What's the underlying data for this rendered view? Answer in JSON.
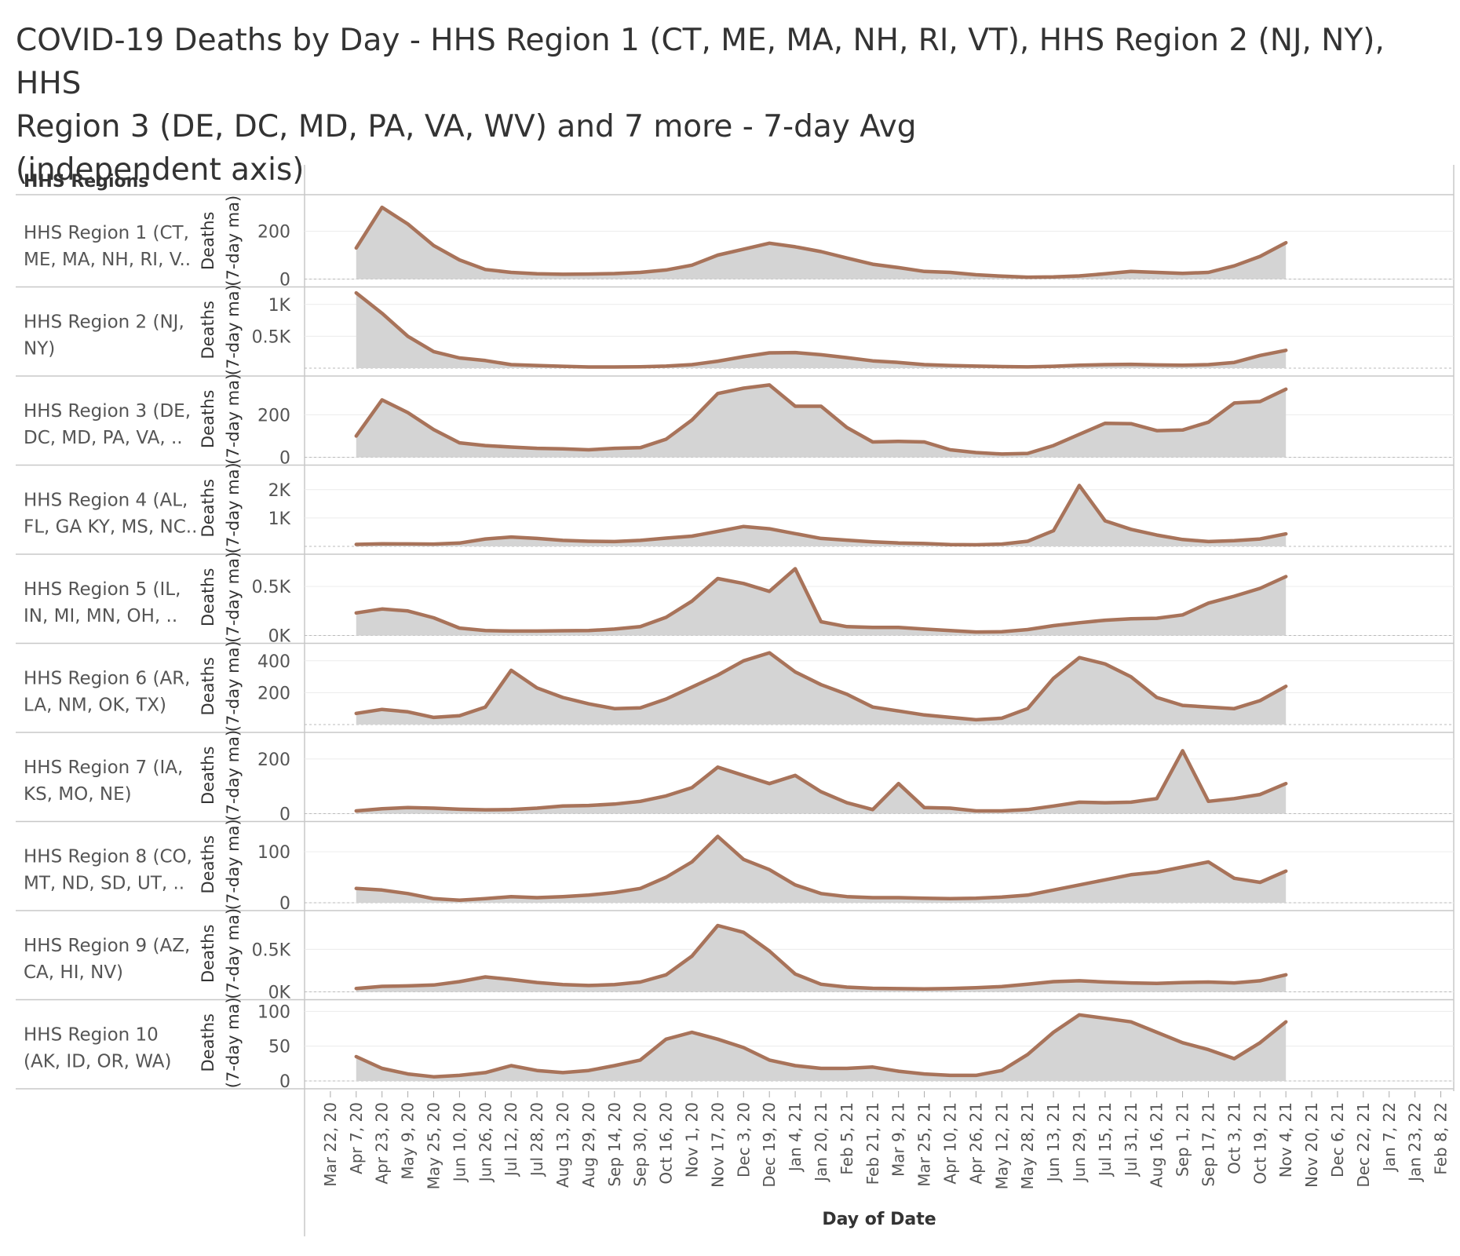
{
  "title_lines": [
    "COVID-19 Deaths by Day - HHS Region 1 (CT, ME, MA, NH, RI, VT), HHS Region 2 (NJ, NY), HHS",
    "Region 3 (DE, DC, MD, PA, VA, WV) and 7 more - 7-day Avg",
    "(independent axis)"
  ],
  "colors": {
    "line": "#a8735a",
    "area": "#d4d4d4",
    "grid": "#ececec",
    "border": "#c8c8c8",
    "text": "#555555"
  },
  "chart_data": {
    "type": "area",
    "row_header": "HHS Regions",
    "xlabel": "Day of Date",
    "ylabel_lines": [
      "Deaths",
      "(7-day ma)"
    ],
    "x_range_days": [
      0,
      323
    ],
    "x_ticks": [
      {
        "label": "Mar 22, 20",
        "day": 0
      },
      {
        "label": "Apr 7, 20",
        "day": 16
      },
      {
        "label": "Apr 23, 20",
        "day": 32
      },
      {
        "label": "May 9, 20",
        "day": 48
      },
      {
        "label": "May 25, 20",
        "day": 64
      },
      {
        "label": "Jun 10, 20",
        "day": 80
      },
      {
        "label": "Jun 26, 20",
        "day": 96
      },
      {
        "label": "Jul 12, 20",
        "day": 112
      },
      {
        "label": "Jul 28, 20",
        "day": 128
      },
      {
        "label": "Aug 13, 20",
        "day": 144
      },
      {
        "label": "Aug 29, 20",
        "day": 160
      },
      {
        "label": "Sep 14, 20",
        "day": 176
      },
      {
        "label": "Sep 30, 20",
        "day": 192
      },
      {
        "label": "Oct 16, 20",
        "day": 208
      },
      {
        "label": "Nov 1, 20",
        "day": 224
      },
      {
        "label": "Nov 17, 20",
        "day": 240
      },
      {
        "label": "Dec 3, 20",
        "day": 256
      },
      {
        "label": "Dec 19, 20",
        "day": 272
      },
      {
        "label": "Jan 4, 21",
        "day": 288
      },
      {
        "label": "Jan 20, 21",
        "day": 304
      },
      {
        "label": "Feb 5, 21",
        "day": 320
      },
      {
        "label": "Feb 21, 21",
        "day": 336
      },
      {
        "label": "Mar 9, 21",
        "day": 352
      },
      {
        "label": "Mar 25, 21",
        "day": 368
      },
      {
        "label": "Apr 10, 21",
        "day": 384
      },
      {
        "label": "Apr 26, 21",
        "day": 400
      },
      {
        "label": "May 12, 21",
        "day": 416
      },
      {
        "label": "May 28, 21",
        "day": 432
      },
      {
        "label": "Jun 13, 21",
        "day": 448
      },
      {
        "label": "Jun 29, 21",
        "day": 464
      },
      {
        "label": "Jul 15, 21",
        "day": 480
      },
      {
        "label": "Jul 31, 21",
        "day": 496
      },
      {
        "label": "Aug 16, 21",
        "day": 512
      },
      {
        "label": "Sep 1, 21",
        "day": 528
      },
      {
        "label": "Sep 17, 21",
        "day": 544
      },
      {
        "label": "Oct 3, 21",
        "day": 560
      },
      {
        "label": "Oct 19, 21",
        "day": 576
      },
      {
        "label": "Nov 4, 21",
        "day": 592
      },
      {
        "label": "Nov 20, 21",
        "day": 608
      },
      {
        "label": "Dec 6, 21",
        "day": 624
      },
      {
        "label": "Dec 22, 21",
        "day": 640
      },
      {
        "label": "Jan 7, 22",
        "day": 656
      },
      {
        "label": "Jan 23, 22",
        "day": 672
      },
      {
        "label": "Feb 8, 22",
        "day": 688
      }
    ],
    "x_domain": [
      -16,
      696
    ],
    "series_start_day": 16,
    "series_step_days": 16,
    "panels": [
      {
        "label_lines": [
          "HHS Region 1 (CT,",
          "ME, MA, NH, RI, V.."
        ],
        "ylim": [
          0,
          320
        ],
        "yticks": [
          {
            "label": "200",
            "v": 200
          },
          {
            "label": "0",
            "v": 0
          }
        ],
        "values": [
          130,
          300,
          230,
          140,
          80,
          40,
          28,
          22,
          20,
          21,
          23,
          28,
          38,
          58,
          100,
          125,
          150,
          135,
          115,
          88,
          62,
          48,
          32,
          28,
          18,
          12,
          8,
          9,
          13,
          22,
          32,
          28,
          24,
          28,
          55,
          95,
          152
        ]
      },
      {
        "label_lines": [
          "HHS Region 2 (NJ,",
          "NY)"
        ],
        "ylim": [
          0,
          1200
        ],
        "yticks": [
          {
            "label": "1K",
            "v": 1000
          },
          {
            "label": "0.5K",
            "v": 500
          }
        ],
        "values": [
          1180,
          860,
          500,
          260,
          160,
          120,
          55,
          42,
          30,
          18,
          18,
          22,
          32,
          55,
          110,
          180,
          240,
          245,
          210,
          165,
          115,
          90,
          55,
          42,
          32,
          25,
          20,
          30,
          45,
          55,
          60,
          50,
          45,
          55,
          90,
          200,
          280
        ]
      },
      {
        "label_lines": [
          "HHS Region 3 (DE,",
          "DC, MD, PA, VA, .."
        ],
        "ylim": [
          0,
          360
        ],
        "yticks": [
          {
            "label": "200",
            "v": 200
          },
          {
            "label": "0",
            "v": 0
          }
        ],
        "values": [
          100,
          270,
          210,
          130,
          68,
          55,
          48,
          42,
          40,
          35,
          42,
          45,
          85,
          175,
          300,
          325,
          340,
          240,
          240,
          140,
          72,
          75,
          72,
          35,
          22,
          15,
          18,
          55,
          108,
          160,
          158,
          125,
          128,
          165,
          255,
          262,
          320
        ]
      },
      {
        "label_lines": [
          "HHS Region 4 (AL,",
          "FL, GA KY, MS, NC.."
        ],
        "ylim": [
          0,
          2700
        ],
        "yticks": [
          {
            "label": "2K",
            "v": 2000
          },
          {
            "label": "1K",
            "v": 1000
          }
        ],
        "values": [
          70,
          90,
          85,
          80,
          115,
          260,
          330,
          280,
          210,
          180,
          170,
          210,
          290,
          360,
          530,
          700,
          620,
          450,
          280,
          220,
          160,
          120,
          100,
          60,
          55,
          80,
          180,
          550,
          2150,
          900,
          600,
          400,
          240,
          170,
          200,
          260,
          440
        ]
      },
      {
        "label_lines": [
          "HHS Region 5 (IL,",
          "IN, MI, MN, OH, .."
        ],
        "ylim": [
          0,
          780
        ],
        "yticks": [
          {
            "label": "0.5K",
            "v": 500
          },
          {
            "label": "0K",
            "v": 0
          }
        ],
        "values": [
          230,
          270,
          250,
          180,
          75,
          50,
          45,
          45,
          48,
          50,
          65,
          90,
          185,
          350,
          580,
          530,
          450,
          680,
          140,
          90,
          82,
          82,
          65,
          50,
          35,
          38,
          60,
          100,
          130,
          155,
          170,
          175,
          210,
          330,
          400,
          480,
          600
        ]
      },
      {
        "label_lines": [
          "HHS Region 6 (AR,",
          "LA, NM, OK, TX)"
        ],
        "ylim": [
          0,
          480
        ],
        "yticks": [
          {
            "label": "400",
            "v": 400
          },
          {
            "label": "200",
            "v": 200
          }
        ],
        "values": [
          70,
          95,
          80,
          45,
          55,
          110,
          340,
          230,
          170,
          130,
          100,
          105,
          160,
          235,
          310,
          400,
          450,
          330,
          250,
          190,
          110,
          85,
          60,
          45,
          30,
          40,
          100,
          290,
          420,
          380,
          300,
          170,
          120,
          110,
          100,
          150,
          240
        ]
      },
      {
        "label_lines": [
          "HHS Region 7 (IA,",
          "KS, MO, NE)"
        ],
        "ylim": [
          0,
          280
        ],
        "yticks": [
          {
            "label": "200",
            "v": 200
          },
          {
            "label": "0",
            "v": 0
          }
        ],
        "values": [
          10,
          18,
          22,
          20,
          16,
          14,
          15,
          20,
          28,
          30,
          35,
          45,
          65,
          95,
          170,
          140,
          110,
          140,
          80,
          40,
          15,
          110,
          22,
          20,
          10,
          10,
          15,
          28,
          42,
          40,
          42,
          55,
          230,
          45,
          55,
          70,
          110
        ]
      },
      {
        "label_lines": [
          "HHS Region 8 (CO,",
          "MT, ND, SD, UT, .."
        ],
        "ylim": [
          0,
          150
        ],
        "yticks": [
          {
            "label": "100",
            "v": 100
          },
          {
            "label": "0",
            "v": 0
          }
        ],
        "values": [
          28,
          25,
          18,
          8,
          5,
          8,
          12,
          10,
          12,
          15,
          20,
          28,
          50,
          80,
          130,
          85,
          65,
          35,
          18,
          12,
          10,
          10,
          9,
          8,
          9,
          11,
          15,
          25,
          35,
          45,
          55,
          60,
          70,
          80,
          48,
          40,
          62
        ]
      },
      {
        "label_lines": [
          "HHS Region 9 (AZ,",
          "CA, HI, NV)"
        ],
        "ylim": [
          0,
          900
        ],
        "yticks": [
          {
            "label": "0.5K",
            "v": 500
          },
          {
            "label": "0K",
            "v": 0
          }
        ],
        "values": [
          40,
          65,
          70,
          80,
          120,
          175,
          145,
          110,
          85,
          75,
          85,
          115,
          200,
          420,
          780,
          700,
          480,
          210,
          90,
          55,
          42,
          38,
          35,
          40,
          48,
          62,
          90,
          120,
          130,
          115,
          105,
          100,
          110,
          115,
          105,
          130,
          200
        ]
      },
      {
        "label_lines": [
          "HHS Region 10",
          "(AK, ID, OR, WA)"
        ],
        "ylim": [
          0,
          110
        ],
        "yticks": [
          {
            "label": "100",
            "v": 100
          },
          {
            "label": "50",
            "v": 50
          },
          {
            "label": "0",
            "v": 0
          }
        ],
        "values": [
          35,
          18,
          10,
          6,
          8,
          12,
          22,
          15,
          12,
          15,
          22,
          30,
          60,
          70,
          60,
          48,
          30,
          22,
          18,
          18,
          20,
          14,
          10,
          8,
          8,
          15,
          38,
          70,
          95,
          90,
          85,
          70,
          55,
          45,
          32,
          55,
          85
        ]
      }
    ]
  }
}
